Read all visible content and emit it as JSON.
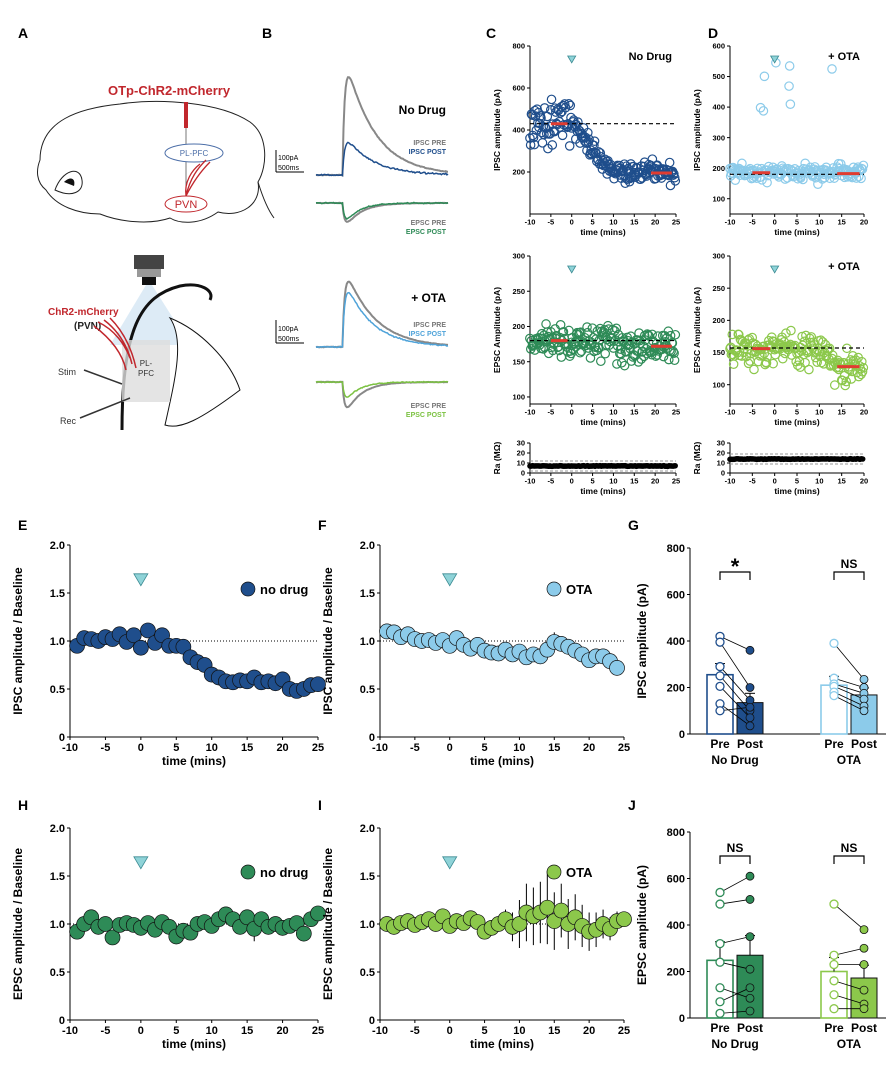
{
  "panel_letters": {
    "A": "A",
    "B": "B",
    "C": "C",
    "D": "D",
    "E": "E",
    "F": "F",
    "G": "G",
    "H": "H",
    "I": "I",
    "J": "J"
  },
  "panel_A": {
    "construct": "OTp-ChR2-mCherry",
    "region_plpfc": "PL-PFC",
    "region_pvn": "PVN",
    "chr2_label_1": "ChR2-mCherry",
    "chr2_label_2": "(PVN)",
    "stim": "Stim",
    "rec": "Rec",
    "slice_pl_1": "PL-",
    "slice_pl_2": "PFC"
  },
  "panel_B": {
    "no_drug": "No Drug",
    "ota": "+ OTA",
    "scale_1": "100pA",
    "scale_2": "500ms",
    "ipsc_pre": "IPSC PRE",
    "ipsc_post": "IPSC POST",
    "epsc_pre": "EPSC PRE",
    "epsc_post": "EPSC POST",
    "colors": {
      "pre": "#888888",
      "ipsc_post_nd": "#1f4e8c",
      "epsc_post_nd": "#2e8b57",
      "ipsc_post_ota": "#4fa3d9",
      "epsc_post_ota": "#7cc242"
    }
  },
  "chart_data": [
    {
      "id": "C_ipsc",
      "type": "scatter",
      "title": "No Drug",
      "xlabel": "time (mins)",
      "ylabel": "IPSC amplitude (pA)",
      "xlim": [
        -10,
        25
      ],
      "ylim": [
        0,
        800
      ],
      "xticks": [
        -10,
        -5,
        0,
        5,
        10,
        15,
        20,
        25
      ],
      "yticks": [
        200,
        400,
        600,
        800
      ],
      "baseline": 430,
      "mean_pre": 430,
      "mean_post": 195,
      "color": "#1f4e8c"
    },
    {
      "id": "C_epsc",
      "type": "scatter",
      "title": "",
      "xlabel": "time (mins)",
      "ylabel": "EPSC Amplitude (pA)",
      "xlim": [
        -10,
        25
      ],
      "ylim": [
        90,
        300
      ],
      "xticks": [
        -10,
        -5,
        0,
        5,
        10,
        15,
        20,
        25
      ],
      "yticks": [
        100,
        150,
        200,
        250,
        300
      ],
      "baseline": 180,
      "mean_pre": 180,
      "mean_post": 172,
      "color": "#2e8b57"
    },
    {
      "id": "C_ra",
      "type": "scatter",
      "title": "",
      "xlabel": "time (mins)",
      "ylabel": "Ra (MΩ)",
      "xlim": [
        -10,
        25
      ],
      "ylim": [
        0,
        30
      ],
      "xticks": [
        -10,
        -5,
        0,
        5,
        10,
        15,
        20,
        25
      ],
      "yticks": [
        0,
        10,
        20,
        30
      ],
      "value": 7
    },
    {
      "id": "D_ipsc",
      "type": "scatter",
      "title": "+ OTA",
      "xlabel": "time (mins)",
      "ylabel": "IPSC amplitude (pA)",
      "xlim": [
        -10,
        20
      ],
      "ylim": [
        50,
        600
      ],
      "xticks": [
        -10,
        -5,
        0,
        5,
        10,
        15,
        20
      ],
      "yticks": [
        100,
        200,
        300,
        400,
        500,
        600
      ],
      "baseline": 180,
      "mean_pre": 185,
      "mean_post": 182,
      "color": "#8ccbea"
    },
    {
      "id": "D_epsc",
      "type": "scatter",
      "title": "+ OTA",
      "xlabel": "time (mins)",
      "ylabel": "EPSC Amplitude (pA)",
      "xlim": [
        -10,
        20
      ],
      "ylim": [
        70,
        300
      ],
      "xticks": [
        -10,
        -5,
        0,
        5,
        10,
        15,
        20
      ],
      "yticks": [
        100,
        150,
        200,
        250,
        300
      ],
      "baseline": 157,
      "mean_pre": 156,
      "mean_post": 128,
      "color": "#8cc84b"
    },
    {
      "id": "D_ra",
      "type": "scatter",
      "title": "",
      "xlabel": "time (mins)",
      "ylabel": "Ra (MΩ)",
      "xlim": [
        -10,
        20
      ],
      "ylim": [
        0,
        30
      ],
      "xticks": [
        -10,
        -5,
        0,
        5,
        10,
        15,
        20
      ],
      "yticks": [
        0,
        10,
        20,
        30
      ],
      "value": 14
    },
    {
      "id": "E",
      "type": "line",
      "legend": "no drug",
      "xlabel": "time (mins)",
      "ylabel": "IPSC amplitude  / Baseline",
      "xlim": [
        -10,
        25
      ],
      "ylim": [
        0,
        2
      ],
      "xticks": [
        -10,
        -5,
        0,
        5,
        10,
        15,
        20,
        25
      ],
      "yticks": [
        0,
        0.5,
        1.0,
        1.5,
        2.0
      ],
      "ytick_labels": [
        "0",
        "0.5",
        "1.0",
        "1.5",
        "2.0"
      ],
      "color": "#1f4e8c",
      "x": [
        -9,
        -8,
        -7,
        -6,
        -5,
        -4,
        -3,
        -2,
        -1,
        0,
        1,
        2,
        3,
        4,
        5,
        6,
        7,
        8,
        9,
        10,
        11,
        12,
        13,
        14,
        15,
        16,
        17,
        18,
        19,
        20,
        21,
        22,
        23,
        24,
        25
      ],
      "y": [
        0.95,
        1.03,
        1.02,
        1.0,
        1.04,
        1.02,
        1.07,
        0.99,
        1.06,
        0.93,
        1.11,
        0.98,
        1.06,
        0.95,
        0.95,
        0.94,
        0.83,
        0.78,
        0.75,
        0.65,
        0.62,
        0.58,
        0.57,
        0.59,
        0.58,
        0.62,
        0.57,
        0.58,
        0.56,
        0.6,
        0.5,
        0.48,
        0.5,
        0.54,
        0.55
      ],
      "err": [
        0.05,
        0.05,
        0.05,
        0.05,
        0.05,
        0.05,
        0.05,
        0.05,
        0.05,
        0.06,
        0.06,
        0.05,
        0.05,
        0.05,
        0.05,
        0.06,
        0.06,
        0.06,
        0.06,
        0.07,
        0.08,
        0.08,
        0.08,
        0.08,
        0.07,
        0.07,
        0.07,
        0.08,
        0.08,
        0.08,
        0.07,
        0.07,
        0.07,
        0.08,
        0.08
      ]
    },
    {
      "id": "F",
      "type": "line",
      "legend": "OTA",
      "xlabel": "time (mins)",
      "ylabel": "IPSC amplitude  / Baseline",
      "xlim": [
        -10,
        25
      ],
      "ylim": [
        0,
        2
      ],
      "xticks": [
        -10,
        -5,
        0,
        5,
        10,
        15,
        20,
        25
      ],
      "yticks": [
        0,
        0.5,
        1.0,
        1.5,
        2.0
      ],
      "ytick_labels": [
        "0",
        "0.5",
        "1.0",
        "1.5",
        "2.0"
      ],
      "color": "#8ccbea",
      "x": [
        -9,
        -8,
        -7,
        -6,
        -5,
        -4,
        -3,
        -2,
        -1,
        0,
        1,
        2,
        3,
        4,
        5,
        6,
        7,
        8,
        9,
        10,
        11,
        12,
        13,
        14,
        15,
        16,
        17,
        18,
        19,
        20,
        21,
        22,
        23,
        24
      ],
      "y": [
        1.1,
        1.09,
        1.04,
        1.07,
        1.02,
        1.0,
        1.01,
        0.98,
        1.01,
        0.95,
        1.03,
        0.96,
        0.92,
        0.96,
        0.9,
        0.88,
        0.87,
        0.91,
        0.86,
        0.89,
        0.83,
        0.86,
        0.84,
        0.91,
        0.99,
        0.97,
        0.94,
        0.9,
        0.86,
        0.8,
        0.84,
        0.84,
        0.79,
        0.72
      ],
      "err": [
        0.04,
        0.04,
        0.04,
        0.04,
        0.04,
        0.04,
        0.04,
        0.04,
        0.04,
        0.05,
        0.05,
        0.05,
        0.05,
        0.05,
        0.05,
        0.05,
        0.05,
        0.05,
        0.05,
        0.05,
        0.05,
        0.05,
        0.05,
        0.05,
        0.1,
        0.06,
        0.06,
        0.06,
        0.06,
        0.06,
        0.06,
        0.06,
        0.06,
        0.06
      ]
    },
    {
      "id": "G",
      "type": "bar",
      "ylabel": "IPSC amplitude (pA)",
      "ylim": [
        0,
        800
      ],
      "yticks": [
        0,
        200,
        400,
        600,
        800
      ],
      "groups": [
        "No Drug",
        "OTA"
      ],
      "bar_labels": [
        "Pre",
        "Post"
      ],
      "sig": [
        "*",
        "NS"
      ],
      "means": [
        [
          255,
          135
        ],
        [
          210,
          168
        ]
      ],
      "sems": [
        [
          48,
          40
        ],
        [
          38,
          30
        ]
      ],
      "pairs": [
        [
          [
            420,
            360
          ],
          [
            395,
            200
          ],
          [
            290,
            145
          ],
          [
            250,
            100
          ],
          [
            205,
            70
          ],
          [
            130,
            35
          ],
          [
            100,
            115
          ]
        ],
        [
          [
            390,
            235
          ],
          [
            240,
            200
          ],
          [
            215,
            175
          ],
          [
            205,
            150
          ],
          [
            180,
            120
          ],
          [
            165,
            100
          ]
        ]
      ],
      "colors": [
        [
          "#1f4e8c",
          "#1f4e8c"
        ],
        [
          "#8ccbea",
          "#8ccbea"
        ]
      ]
    },
    {
      "id": "H",
      "type": "line",
      "legend": "no drug",
      "xlabel": "time (mins)",
      "ylabel": "EPSC amplitude / Baseline",
      "xlim": [
        -10,
        25
      ],
      "ylim": [
        0,
        2
      ],
      "xticks": [
        -10,
        -5,
        0,
        5,
        10,
        15,
        20,
        25
      ],
      "yticks": [
        0,
        0.5,
        1.0,
        1.5,
        2.0
      ],
      "ytick_labels": [
        "0",
        "0.5",
        "1.0",
        "1.5",
        "2.0"
      ],
      "color": "#2e8b57",
      "x": [
        -9,
        -8,
        -7,
        -6,
        -5,
        -4,
        -3,
        -2,
        -1,
        0,
        1,
        2,
        3,
        4,
        5,
        6,
        7,
        8,
        9,
        10,
        11,
        12,
        13,
        14,
        15,
        16,
        17,
        18,
        19,
        20,
        21,
        22,
        23,
        24,
        25
      ],
      "y": [
        0.92,
        1.0,
        1.07,
        0.97,
        1.0,
        0.86,
        0.99,
        1.01,
        0.99,
        0.96,
        1.01,
        0.94,
        1.02,
        0.97,
        0.87,
        0.93,
        0.91,
        1.0,
        1.02,
        0.98,
        1.05,
        1.1,
        1.05,
        0.97,
        1.07,
        0.95,
        1.05,
        0.97,
        1.0,
        0.96,
        0.98,
        1.01,
        0.9,
        1.05,
        1.11
      ],
      "err": [
        0.05,
        0.05,
        0.06,
        0.05,
        0.05,
        0.05,
        0.05,
        0.05,
        0.05,
        0.05,
        0.05,
        0.05,
        0.05,
        0.05,
        0.06,
        0.06,
        0.06,
        0.06,
        0.06,
        0.06,
        0.07,
        0.07,
        0.07,
        0.07,
        0.07,
        0.13,
        0.07,
        0.07,
        0.07,
        0.07,
        0.07,
        0.07,
        0.07,
        0.07,
        0.07
      ]
    },
    {
      "id": "I",
      "type": "line",
      "legend": "OTA",
      "xlabel": "time (mins)",
      "ylabel": "EPSC amplitude / Baseline",
      "xlim": [
        -10,
        25
      ],
      "ylim": [
        0,
        2
      ],
      "xticks": [
        -10,
        -5,
        0,
        5,
        10,
        15,
        20,
        25
      ],
      "yticks": [
        0,
        0.5,
        1.0,
        1.5,
        2.0
      ],
      "ytick_labels": [
        "0",
        "0.5",
        "1.0",
        "1.5",
        "2.0"
      ],
      "color": "#8cc84b",
      "x": [
        -9,
        -8,
        -7,
        -6,
        -5,
        -4,
        -3,
        -2,
        -1,
        0,
        1,
        2,
        3,
        4,
        5,
        6,
        7,
        8,
        9,
        10,
        11,
        12,
        13,
        14,
        15,
        16,
        17,
        18,
        19,
        20,
        21,
        22,
        23,
        24,
        25
      ],
      "y": [
        1.0,
        0.97,
        1.01,
        1.03,
        0.99,
        1.02,
        1.05,
        1.0,
        1.08,
        0.98,
        1.03,
        1.01,
        1.06,
        1.02,
        0.92,
        0.96,
        1.0,
        1.05,
        0.97,
        1.0,
        1.12,
        1.08,
        1.12,
        1.17,
        1.03,
        1.14,
        1.0,
        1.07,
        0.98,
        0.92,
        0.94,
        1.0,
        0.95,
        1.03,
        1.05
      ],
      "err": [
        0.04,
        0.04,
        0.04,
        0.04,
        0.04,
        0.04,
        0.04,
        0.04,
        0.05,
        0.05,
        0.05,
        0.05,
        0.05,
        0.05,
        0.06,
        0.06,
        0.06,
        0.1,
        0.15,
        0.25,
        0.3,
        0.3,
        0.32,
        0.38,
        0.3,
        0.28,
        0.26,
        0.24,
        0.22,
        0.2,
        0.18,
        0.15,
        0.12,
        0.1,
        0.08
      ]
    },
    {
      "id": "J",
      "type": "bar",
      "ylabel": "EPSC amplitude (pA)",
      "ylim": [
        0,
        800
      ],
      "yticks": [
        0,
        200,
        400,
        600,
        800
      ],
      "groups": [
        "No Drug",
        "OTA"
      ],
      "bar_labels": [
        "Pre",
        "Post"
      ],
      "sig": [
        "NS",
        "NS"
      ],
      "means": [
        [
          248,
          270
        ],
        [
          200,
          172
        ]
      ],
      "sems": [
        [
          80,
          85
        ],
        [
          60,
          55
        ]
      ],
      "pairs": [
        [
          [
            540,
            610
          ],
          [
            490,
            510
          ],
          [
            320,
            350
          ],
          [
            240,
            210
          ],
          [
            130,
            85
          ],
          [
            70,
            130
          ],
          [
            20,
            30
          ]
        ],
        [
          [
            490,
            380
          ],
          [
            270,
            300
          ],
          [
            230,
            230
          ],
          [
            160,
            120
          ],
          [
            100,
            60
          ],
          [
            40,
            40
          ]
        ]
      ],
      "colors": [
        [
          "#2e8b57",
          "#2e8b57"
        ],
        [
          "#8cc84b",
          "#8cc84b"
        ]
      ]
    }
  ]
}
